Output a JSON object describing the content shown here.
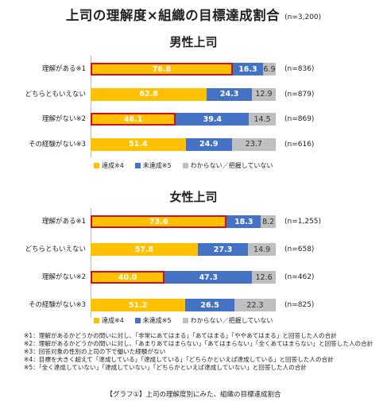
{
  "title": "上司の理解度×組織の目標達成割合",
  "sample_note": "(n=3,200)",
  "series_colors": [
    "#FFC000",
    "#4472C4",
    "#BFBFBF"
  ],
  "highlight_color": "#D0101A",
  "chart_data": [
    {
      "type": "bar",
      "orientation": "horizontal-stacked-100",
      "title": "男性上司",
      "categories": [
        "理解がある※1",
        "どちらともいえない",
        "理解がない※2",
        "その経験がない※3"
      ],
      "n_labels": [
        "(n=836)",
        "(n=879)",
        "(n=869)",
        "(n=616)"
      ],
      "series": [
        {
          "name": "達成※4",
          "values": [
            76.8,
            62.8,
            46.1,
            51.4
          ]
        },
        {
          "name": "未達成※5",
          "values": [
            16.3,
            24.3,
            39.4,
            24.9
          ]
        },
        {
          "name": "わからない／把握していない",
          "values": [
            6.9,
            12.9,
            14.5,
            23.7
          ]
        }
      ],
      "highlighted": [
        0,
        2
      ],
      "xlim": [
        0,
        100
      ]
    },
    {
      "type": "bar",
      "orientation": "horizontal-stacked-100",
      "title": "女性上司",
      "categories": [
        "理解がある※1",
        "どちらともいえない",
        "理解がない※2",
        "その経験がない※3"
      ],
      "n_labels": [
        "(n=1,255)",
        "(n=658)",
        "(n=462)",
        "(n=825)"
      ],
      "series": [
        {
          "name": "達成※4",
          "values": [
            73.6,
            57.8,
            40.0,
            51.2
          ]
        },
        {
          "name": "未達成※5",
          "values": [
            18.3,
            27.3,
            47.3,
            26.5
          ]
        },
        {
          "name": "わからない／把握していない",
          "values": [
            8.2,
            14.9,
            12.6,
            22.3
          ]
        }
      ],
      "highlighted": [
        0,
        2
      ],
      "xlim": [
        0,
        100
      ]
    }
  ],
  "notes": [
    "※1：理解があるかどうかの問いに対し、「非常にあてはまる」「あてはまる」「ややあてはまる」と回答した人の合計",
    "※2：理解があるかどうかの問いに対し、「あまりあてはまらない」「あてはまらない」「全くあてはまらない」と回答した人の合計",
    "※3：回答対象の性別の上司の下で働いた経験がない",
    "※4：目標を大きく超えて「達成している」「達成している」「どちらかといえば達成している」と回答した人の合計",
    "※5：「全く達成していない」「達成していない」「どちらかといえば達成していない」と回答した人の合計"
  ],
  "caption": "【グラフ①】上司の理解度別にみた、組織の目標達成割合"
}
